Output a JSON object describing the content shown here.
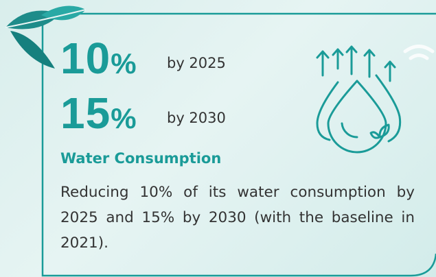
{
  "targets": [
    {
      "value": "10",
      "unit": "%",
      "label": "by 2025"
    },
    {
      "value": "15",
      "unit": "%",
      "label": "by 2030"
    }
  ],
  "heading": "Water Consumption",
  "body": "Reducing 10% of its water consumption by 2025 and 15% by 2030 (with the baseline in 2021)."
}
